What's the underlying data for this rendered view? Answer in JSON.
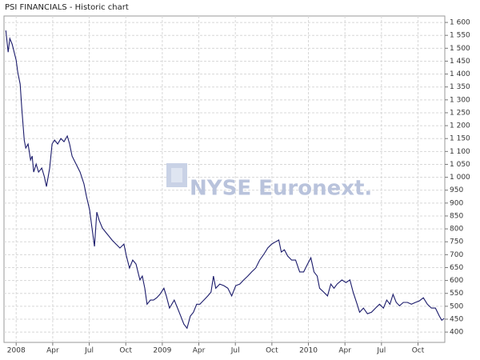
{
  "chart_data": {
    "type": "line",
    "title": "PSI FINANCIALS - Historic chart",
    "watermark": "NYSE Euronext.",
    "x": [
      -0.85,
      -0.66,
      -0.52,
      -0.33,
      0,
      0.13,
      0.33,
      0.46,
      0.66,
      0.79,
      0.98,
      1.18,
      1.31,
      1.44,
      1.64,
      1.84,
      2.1,
      2.3,
      2.49,
      2.75,
      2.95,
      3.15,
      3.41,
      3.67,
      3.93,
      4.2,
      4.39,
      4.59,
      4.92,
      5.25,
      5.57,
      5.77,
      6.03,
      6.23,
      6.43,
      6.62,
      6.82,
      7.08,
      7.34,
      7.61,
      7.87,
      8.2,
      8.52,
      8.85,
      9.05,
      9.31,
      9.57,
      9.84,
      10.16,
      10.36,
      10.56,
      10.75,
      11.02,
      11.28,
      11.54,
      11.8,
      12.13,
      12.33,
      12.59,
      12.98,
      13.25,
      13.51,
      13.77,
      14.03,
      14.3,
      14.56,
      14.82,
      15.08,
      15.41,
      15.74,
      16.0,
      16.2,
      16.39,
      16.72,
      17.05,
      17.38,
      17.7,
      18.03,
      18.36,
      18.69,
      19.02,
      19.34,
      19.67,
      20.0,
      20.33,
      20.66,
      20.98,
      21.31,
      21.57,
      21.77,
      22.03,
      22.3,
      22.62,
      22.95,
      23.28,
      23.61,
      23.93,
      24.2,
      24.46,
      24.72,
      24.92,
      25.25,
      25.57,
      25.84,
      26.1,
      26.36,
      26.75,
      27.08,
      27.41,
      27.67,
      28.0,
      28.2,
      28.52,
      28.85,
      29.18,
      29.51,
      29.84,
      30.16,
      30.43,
      30.69,
      30.95,
      31.21,
      31.48,
      31.8,
      32.13,
      32.46,
      32.79,
      33.11,
      33.44,
      33.77,
      34.1,
      34.43,
      34.75,
      34.95,
      35.15
    ],
    "series": [
      {
        "color": "#1b1b6b",
        "values": [
          1569,
          1485,
          1538,
          1516,
          1454,
          1407,
          1361,
          1268,
          1144,
          1113,
          1129,
          1067,
          1082,
          1020,
          1051,
          1020,
          1036,
          1005,
          964,
          1036,
          1129,
          1144,
          1129,
          1150,
          1138,
          1160,
          1129,
          1082,
          1051,
          1020,
          974,
          927,
          874,
          803,
          732,
          865,
          833,
          803,
          788,
          772,
          757,
          741,
          726,
          741,
          695,
          648,
          679,
          664,
          602,
          617,
          570,
          508,
          524,
          524,
          533,
          546,
          570,
          540,
          493,
          524,
          493,
          462,
          431,
          415,
          462,
          477,
          508,
          508,
          524,
          540,
          555,
          617,
          570,
          586,
          580,
          570,
          540,
          580,
          586,
          602,
          617,
          633,
          648,
          679,
          701,
          726,
          741,
          750,
          757,
          710,
          719,
          695,
          679,
          679,
          633,
          633,
          664,
          688,
          633,
          617,
          570,
          555,
          540,
          586,
          570,
          586,
          602,
          592,
          602,
          555,
          508,
          477,
          493,
          471,
          477,
          493,
          508,
          493,
          524,
          508,
          546,
          515,
          502,
          515,
          515,
          508,
          515,
          521,
          533,
          508,
          493,
          493,
          462,
          446,
          453
        ]
      }
    ],
    "xlim": [
      -1,
      35.2
    ],
    "xticks": [
      {
        "value": 0,
        "label": "2008"
      },
      {
        "value": 3,
        "label": "Apr"
      },
      {
        "value": 6,
        "label": "Jul"
      },
      {
        "value": 9,
        "label": "Oct"
      },
      {
        "value": 12,
        "label": "2009"
      },
      {
        "value": 15,
        "label": "Apr"
      },
      {
        "value": 18,
        "label": "Jul"
      },
      {
        "value": 21,
        "label": "Oct"
      },
      {
        "value": 24,
        "label": "2010"
      },
      {
        "value": 27,
        "label": "Apr"
      },
      {
        "value": 30,
        "label": "Jul"
      },
      {
        "value": 33,
        "label": "Oct"
      }
    ],
    "ylim": [
      360,
      1625
    ],
    "yticks": [
      400,
      450,
      500,
      550,
      600,
      650,
      700,
      750,
      800,
      850,
      900,
      950,
      {
        "value": 1000,
        "label": "1 000"
      },
      {
        "value": 1050,
        "label": "1 050"
      },
      {
        "value": 1100,
        "label": "1 100"
      },
      {
        "value": 1150,
        "label": "1 150"
      },
      {
        "value": 1200,
        "label": "1 200"
      },
      {
        "value": 1250,
        "label": "1 250"
      },
      {
        "value": 1300,
        "label": "1 300"
      },
      {
        "value": 1350,
        "label": "1 350"
      },
      {
        "value": 1400,
        "label": "1 400"
      },
      {
        "value": 1450,
        "label": "1 450"
      },
      {
        "value": 1500,
        "label": "1 500"
      },
      {
        "value": 1550,
        "label": "1 550"
      },
      {
        "value": 1600,
        "label": "1 600"
      }
    ],
    "grid": true,
    "y_axis_side": "right"
  }
}
